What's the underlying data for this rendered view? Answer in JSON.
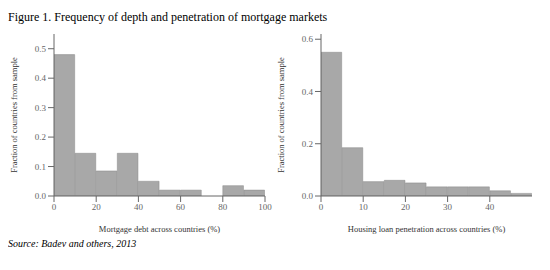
{
  "title": "Figure 1. Frequency of depth and penetration of mortgage markets",
  "annotations": [
    "Source: Badev and others, 2013"
  ],
  "chart_data": [
    {
      "type": "histogram",
      "xlabel": "Mortgage debt across countries (%)",
      "ylabel": "Fraction of countries from sample",
      "bins": [
        0,
        10,
        20,
        30,
        40,
        50,
        60,
        70,
        80,
        90,
        100
      ],
      "values": [
        0.48,
        0.145,
        0.085,
        0.145,
        0.05,
        0.02,
        0.02,
        0.0,
        0.035,
        0.02
      ],
      "color": "#a8a8a8",
      "xlim": [
        0,
        100
      ],
      "ylim": [
        0,
        0.55
      ],
      "xticks": [
        0,
        20,
        40,
        60,
        80,
        100
      ],
      "yticks": [
        {
          "value": 0,
          "label": "0.0"
        },
        0.1,
        0.2,
        0.3,
        0.4,
        0.5
      ],
      "grid": false
    },
    {
      "type": "histogram",
      "xlabel": "Housing loan penetration across countries (%)",
      "ylabel": "Fraction of countries from sample",
      "bins": [
        0,
        5,
        10,
        15,
        20,
        25,
        30,
        35,
        40,
        45,
        50
      ],
      "values": [
        0.55,
        0.185,
        0.055,
        0.06,
        0.05,
        0.035,
        0.035,
        0.035,
        0.02,
        0.01
      ],
      "color": "#a8a8a8",
      "xlim": [
        0,
        50
      ],
      "ylim": [
        0,
        0.62
      ],
      "xticks": [
        0,
        10,
        20,
        30,
        40
      ],
      "yticks": [
        {
          "value": 0,
          "label": "0.0"
        },
        0.2,
        0.4,
        0.6
      ],
      "grid": false
    }
  ]
}
